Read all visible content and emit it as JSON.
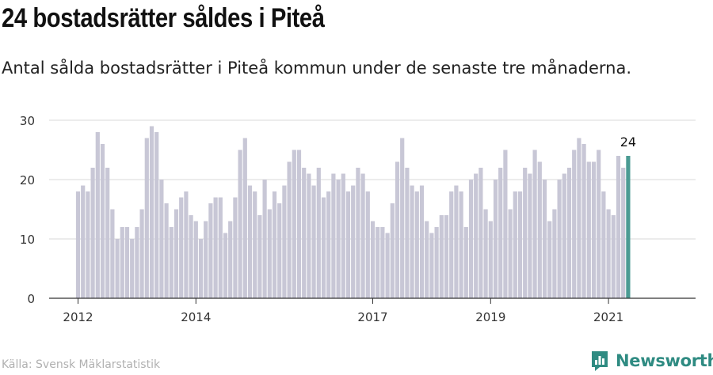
{
  "header": {
    "title": "24 bostadsrätter såldes i Piteå",
    "subtitle": "Antal sålda bostadsrätter i Piteå kommun under de senaste tre månaderna."
  },
  "footer": {
    "source": "Källa: Svensk Mäklarstatistik",
    "brand": "Newsworthy"
  },
  "colors": {
    "bar": "#c8c7d6",
    "highlight": "#4b9b93",
    "grid": "#d9d9d9",
    "axis": "#333333",
    "brand": "#2f8b82"
  },
  "chart_data": {
    "type": "bar",
    "title": "",
    "xlabel": "",
    "ylabel": "",
    "ylim": [
      0,
      30
    ],
    "yticks": [
      0,
      10,
      20,
      30
    ],
    "grid": true,
    "start": "2012-01",
    "x_tick_labels": [
      {
        "label": "2012",
        "index": 0
      },
      {
        "label": "2014",
        "index": 24
      },
      {
        "label": "2017",
        "index": 60
      },
      {
        "label": "2019",
        "index": 84
      },
      {
        "label": "2021",
        "index": 108
      }
    ],
    "values": [
      18,
      19,
      18,
      22,
      28,
      26,
      22,
      15,
      10,
      12,
      12,
      10,
      12,
      15,
      27,
      29,
      28,
      20,
      16,
      12,
      15,
      17,
      18,
      14,
      13,
      10,
      13,
      16,
      17,
      17,
      11,
      13,
      17,
      25,
      27,
      19,
      18,
      14,
      20,
      15,
      18,
      16,
      19,
      23,
      25,
      25,
      22,
      21,
      19,
      22,
      17,
      18,
      21,
      20,
      21,
      18,
      19,
      22,
      21,
      18,
      13,
      12,
      12,
      11,
      16,
      23,
      27,
      22,
      19,
      18,
      19,
      13,
      11,
      12,
      14,
      14,
      18,
      19,
      18,
      12,
      20,
      21,
      22,
      15,
      13,
      20,
      22,
      25,
      15,
      18,
      18,
      22,
      21,
      25,
      23,
      20,
      13,
      15,
      20,
      21,
      22,
      25,
      27,
      26,
      23,
      23,
      25,
      18,
      15,
      14,
      24,
      22,
      24
    ],
    "highlight_index": 112,
    "highlight_label": "24"
  }
}
